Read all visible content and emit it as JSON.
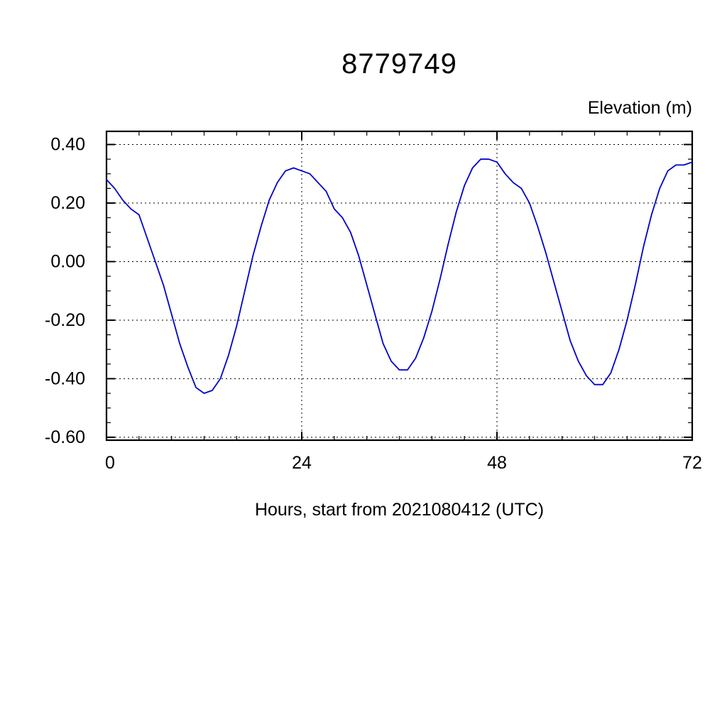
{
  "chart_data": {
    "type": "line",
    "title": "8779749",
    "ylabel": "Elevation (m)",
    "xlabel": "Hours, start from 2021080412 (UTC)",
    "line_color": "#0000cc",
    "axis_color": "#000000",
    "grid_on": true,
    "legend": "none",
    "xlim": [
      0,
      72
    ],
    "ylim": [
      -0.61,
      0.445
    ],
    "xticks": [
      0,
      24,
      48,
      72
    ],
    "xtick_labels": [
      "0",
      "24",
      "48",
      "72"
    ],
    "x_minor_step": 4,
    "yticks": [
      0.4,
      0.2,
      0.0,
      -0.2,
      -0.4,
      -0.6
    ],
    "ytick_labels": [
      "0.40",
      "0.20",
      "0.00",
      "-0.20",
      "-0.40",
      "-0.60"
    ],
    "y_minor_step": 0.05,
    "grid_x_lines": [
      24,
      48
    ],
    "series": [
      {
        "name": "elevation",
        "x": [
          0,
          1,
          2,
          3,
          4,
          5,
          6,
          7,
          8,
          9,
          10,
          11,
          12,
          13,
          14,
          15,
          16,
          17,
          18,
          19,
          20,
          21,
          22,
          23,
          24,
          25,
          26,
          27,
          28,
          29,
          30,
          31,
          32,
          33,
          34,
          35,
          36,
          37,
          38,
          39,
          40,
          41,
          42,
          43,
          44,
          45,
          46,
          47,
          48,
          49,
          50,
          51,
          52,
          53,
          54,
          55,
          56,
          57,
          58,
          59,
          60,
          61,
          62,
          63,
          64,
          65,
          66,
          67,
          68,
          69,
          70,
          71,
          72
        ],
        "y": [
          0.28,
          0.25,
          0.21,
          0.18,
          0.16,
          0.08,
          0.0,
          -0.08,
          -0.18,
          -0.28,
          -0.36,
          -0.43,
          -0.45,
          -0.44,
          -0.4,
          -0.32,
          -0.22,
          -0.1,
          0.02,
          0.12,
          0.21,
          0.27,
          0.31,
          0.32,
          0.31,
          0.3,
          0.27,
          0.24,
          0.18,
          0.15,
          0.1,
          0.02,
          -0.08,
          -0.18,
          -0.28,
          -0.34,
          -0.37,
          -0.37,
          -0.33,
          -0.26,
          -0.17,
          -0.06,
          0.06,
          0.17,
          0.26,
          0.32,
          0.35,
          0.35,
          0.34,
          0.3,
          0.27,
          0.25,
          0.2,
          0.12,
          0.03,
          -0.07,
          -0.17,
          -0.27,
          -0.34,
          -0.39,
          -0.42,
          -0.42,
          -0.38,
          -0.3,
          -0.2,
          -0.08,
          0.05,
          0.16,
          0.25,
          0.31,
          0.33,
          0.33,
          0.34
        ]
      }
    ]
  }
}
